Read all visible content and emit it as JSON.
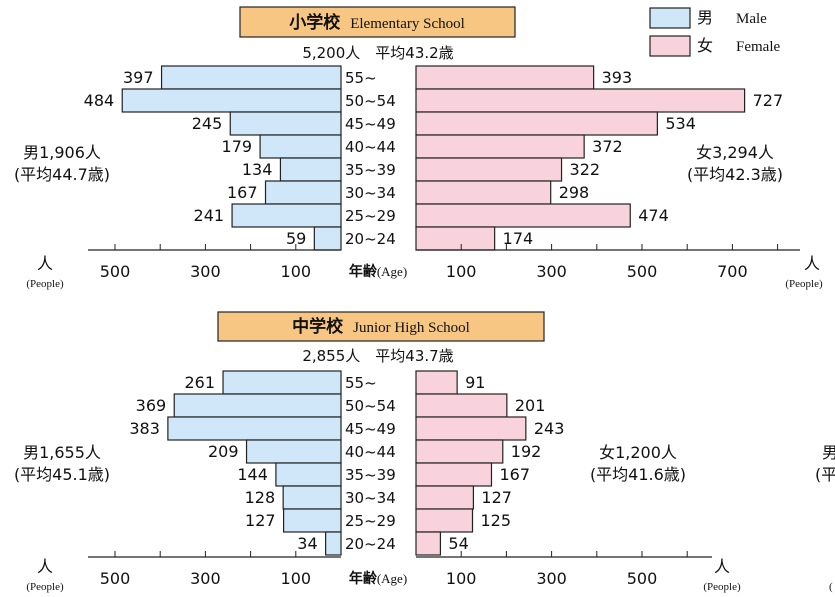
{
  "legend": {
    "male_label_jp": "男",
    "male_label_en": "Male",
    "female_label_jp": "女",
    "female_label_en": "Female",
    "male_color": "#cfe7f8",
    "female_color": "#f8d3de"
  },
  "colors": {
    "title_bg": "#f7c682",
    "bar_stroke": "#222222",
    "axis": "#222222"
  },
  "chart_data": [
    {
      "type": "bar",
      "orientation": "population-pyramid",
      "title_jp": "小学校",
      "title_en": "Elementary School",
      "subtitle": "5,200人　平均43.2歳",
      "categories": [
        "55~",
        "50~54",
        "45~49",
        "40~44",
        "35~39",
        "30~34",
        "25~29",
        "20~24"
      ],
      "series": [
        {
          "name": "男",
          "values": [
            397,
            484,
            245,
            179,
            134,
            167,
            241,
            59
          ]
        },
        {
          "name": "女",
          "values": [
            393,
            727,
            534,
            372,
            322,
            298,
            474,
            174
          ]
        }
      ],
      "male_total": "男1,906人",
      "male_avg": "(平均44.7歳)",
      "female_total": "女3,294人",
      "female_avg": "(平均42.3歳)",
      "left_ticks": [
        "500",
        "300",
        "100"
      ],
      "right_ticks": [
        "100",
        "300",
        "500",
        "700"
      ],
      "axis_center_jp": "年齢",
      "axis_center_en": "(Age)",
      "unit_jp": "人",
      "unit_en": "(People)",
      "xlim_left": [
        0,
        500
      ],
      "xlim_right": [
        0,
        800
      ]
    },
    {
      "type": "bar",
      "orientation": "population-pyramid",
      "title_jp": "中学校",
      "title_en": "Junior High School",
      "subtitle": "2,855人　平均43.7歳",
      "categories": [
        "55~",
        "50~54",
        "45~49",
        "40~44",
        "35~39",
        "30~34",
        "25~29",
        "20~24"
      ],
      "series": [
        {
          "name": "男",
          "values": [
            261,
            369,
            383,
            209,
            144,
            128,
            127,
            34
          ]
        },
        {
          "name": "女",
          "values": [
            91,
            201,
            243,
            192,
            167,
            127,
            125,
            54
          ]
        }
      ],
      "male_total": "男1,655人",
      "male_avg": "(平均45.1歳)",
      "female_total": "女1,200人",
      "female_avg": "(平均41.6歳)",
      "left_ticks": [
        "500",
        "300",
        "100"
      ],
      "right_ticks": [
        "100",
        "300",
        "500"
      ],
      "axis_center_jp": "年齢",
      "axis_center_en": "(Age)",
      "unit_jp": "人",
      "unit_en": "(People)",
      "xlim_left": [
        0,
        500
      ],
      "xlim_right": [
        0,
        600
      ]
    }
  ],
  "cutoff_right": {
    "male_prefix": "男",
    "avg_prefix": "(平",
    "paren": "("
  }
}
